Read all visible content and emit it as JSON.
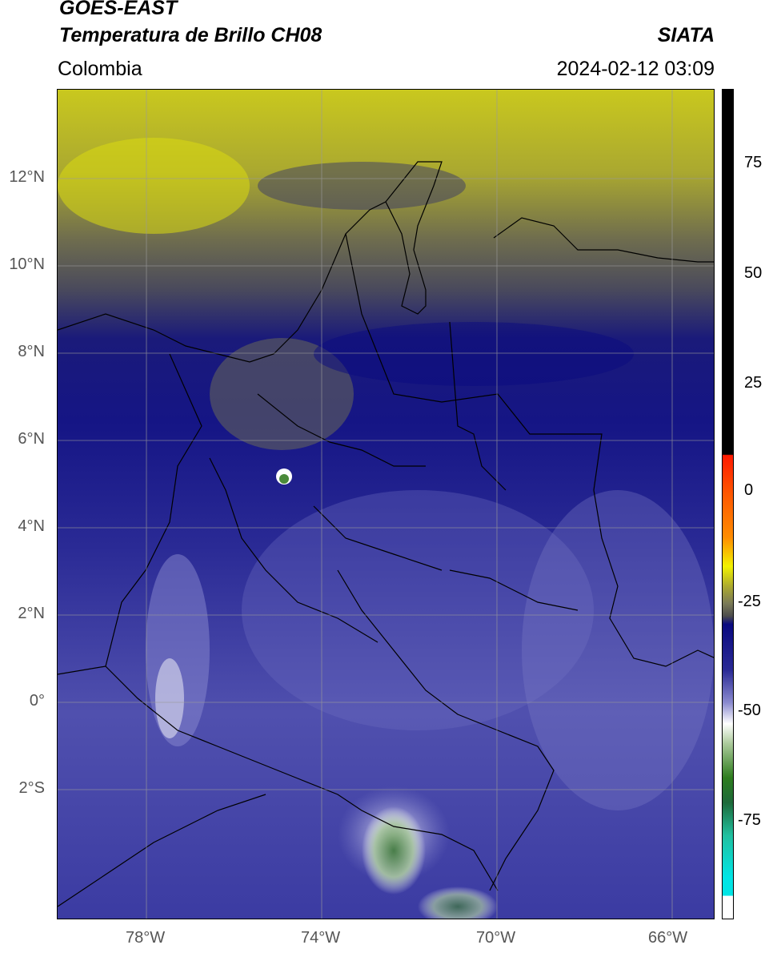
{
  "header": {
    "satellite": "GOES-EAST",
    "product": "Temperatura de Brillo CH08",
    "region": "Colombia",
    "organization": "SIATA",
    "timestamp": "2024-02-12 03:09"
  },
  "map": {
    "lat_range": [
      -5,
      14
    ],
    "lon_range": [
      -80,
      -65
    ],
    "lat_ticks": [
      {
        "value": 12,
        "label": "12°N"
      },
      {
        "value": 10,
        "label": "10°N"
      },
      {
        "value": 8,
        "label": "8°N"
      },
      {
        "value": 6,
        "label": "6°N"
      },
      {
        "value": 4,
        "label": "4°N"
      },
      {
        "value": 2,
        "label": "2°N"
      },
      {
        "value": 0,
        "label": "0°"
      },
      {
        "value": -2,
        "label": "2°S"
      }
    ],
    "lon_ticks": [
      {
        "value": -78,
        "label": "78°W"
      },
      {
        "value": -74,
        "label": "74°W"
      },
      {
        "value": -70,
        "label": "70°W"
      },
      {
        "value": -66,
        "label": "66°W"
      }
    ],
    "grid": true
  },
  "colorbar": {
    "ticks": [
      {
        "value": 75,
        "label": "75"
      },
      {
        "value": 50,
        "label": "50"
      },
      {
        "value": 25,
        "label": "25"
      },
      {
        "value": 0,
        "label": "0"
      },
      {
        "value": -25,
        "label": "-25"
      },
      {
        "value": -50,
        "label": "-50"
      },
      {
        "value": -75,
        "label": "-75"
      }
    ],
    "range": [
      -95,
      90
    ],
    "colors": {
      "black": "#000000",
      "red": "#ff1a00",
      "orange": "#ff8c00",
      "yellow": "#f2f200",
      "olive": "#8c8c3a",
      "gray": "#4d4d4d",
      "navy": "#0a0a80",
      "periwinkle": "#8c8cd0",
      "white": "#ffffff",
      "green": "#2e7d1e",
      "teal": "#20c0a0",
      "cyan": "#00e5e5"
    }
  }
}
